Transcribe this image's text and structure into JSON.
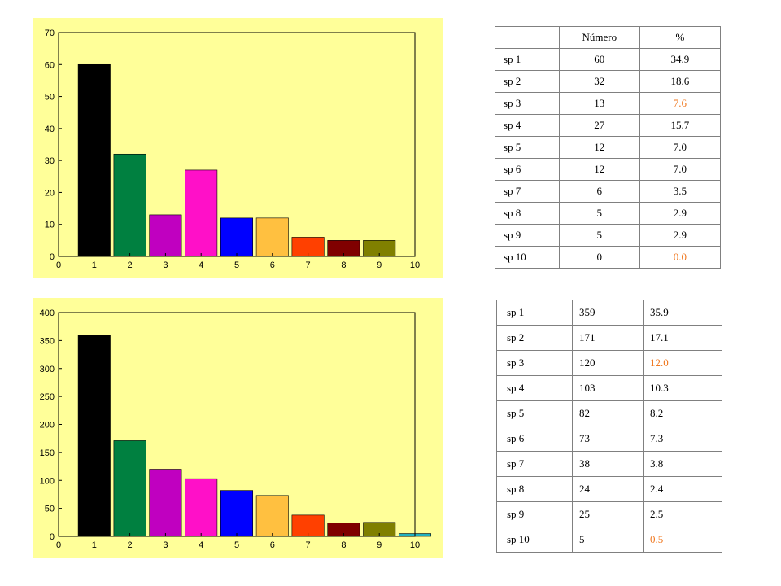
{
  "chart_data": [
    {
      "type": "bar",
      "x": [
        1,
        2,
        3,
        4,
        5,
        6,
        7,
        8,
        9,
        10
      ],
      "values": [
        60,
        32,
        13,
        27,
        12,
        12,
        6,
        5,
        5,
        0
      ],
      "colors": [
        "#000000",
        "#008040",
        "#c000c0",
        "#ff10c8",
        "#0000ff",
        "#ffc040",
        "#ff4000",
        "#800000",
        "#808000",
        "#20b0c0"
      ],
      "xlim": [
        0,
        10
      ],
      "ylim": [
        0,
        70
      ],
      "xticks": [
        0,
        1,
        2,
        3,
        4,
        5,
        6,
        7,
        8,
        9,
        10
      ],
      "yticks": [
        0,
        10,
        20,
        30,
        40,
        50,
        60,
        70
      ],
      "background": "#ffff99",
      "title": "",
      "xlabel": "",
      "ylabel": ""
    },
    {
      "type": "bar",
      "x": [
        1,
        2,
        3,
        4,
        5,
        6,
        7,
        8,
        9,
        10
      ],
      "values": [
        359,
        171,
        120,
        103,
        82,
        73,
        38,
        24,
        25,
        5
      ],
      "colors": [
        "#000000",
        "#008040",
        "#c000c0",
        "#ff10c8",
        "#0000ff",
        "#ffc040",
        "#ff4000",
        "#800000",
        "#808000",
        "#20b0c0"
      ],
      "xlim": [
        0,
        10
      ],
      "ylim": [
        0,
        400
      ],
      "xticks": [
        0,
        1,
        2,
        3,
        4,
        5,
        6,
        7,
        8,
        9,
        10
      ],
      "yticks": [
        0,
        50,
        100,
        150,
        200,
        250,
        300,
        350,
        400
      ],
      "background": "#ffff99",
      "title": "",
      "xlabel": "",
      "ylabel": ""
    }
  ],
  "tables": [
    {
      "header": [
        "",
        "Número",
        "%"
      ],
      "rows": [
        [
          "sp 1",
          "60",
          "34.9"
        ],
        [
          "sp 2",
          "32",
          "18.6"
        ],
        [
          "sp 3",
          "13",
          "7.6"
        ],
        [
          "sp 4",
          "27",
          "15.7"
        ],
        [
          "sp 5",
          "12",
          "7.0"
        ],
        [
          "sp 6",
          "12",
          "7.0"
        ],
        [
          "sp 7",
          "6",
          "3.5"
        ],
        [
          "sp 8",
          "5",
          "2.9"
        ],
        [
          "sp 9",
          "5",
          "2.9"
        ],
        [
          "sp 10",
          "0",
          "0.0"
        ]
      ],
      "highlight_rows": [
        2,
        9
      ],
      "highlight_color": "#f07820"
    },
    {
      "rows": [
        [
          "sp 1",
          "359",
          "35.9"
        ],
        [
          "sp 2",
          "171",
          "17.1"
        ],
        [
          "sp 3",
          "120",
          "12.0"
        ],
        [
          "sp 4",
          "103",
          "10.3"
        ],
        [
          "sp 5",
          "82",
          "8.2"
        ],
        [
          "sp 6",
          "73",
          "7.3"
        ],
        [
          "sp 7",
          "38",
          "3.8"
        ],
        [
          "sp 8",
          "24",
          "2.4"
        ],
        [
          "sp 9",
          "25",
          "2.5"
        ],
        [
          "sp 10",
          "5",
          "0.5"
        ]
      ],
      "highlight_rows": [
        2,
        9
      ],
      "highlight_color": "#f07820"
    }
  ]
}
